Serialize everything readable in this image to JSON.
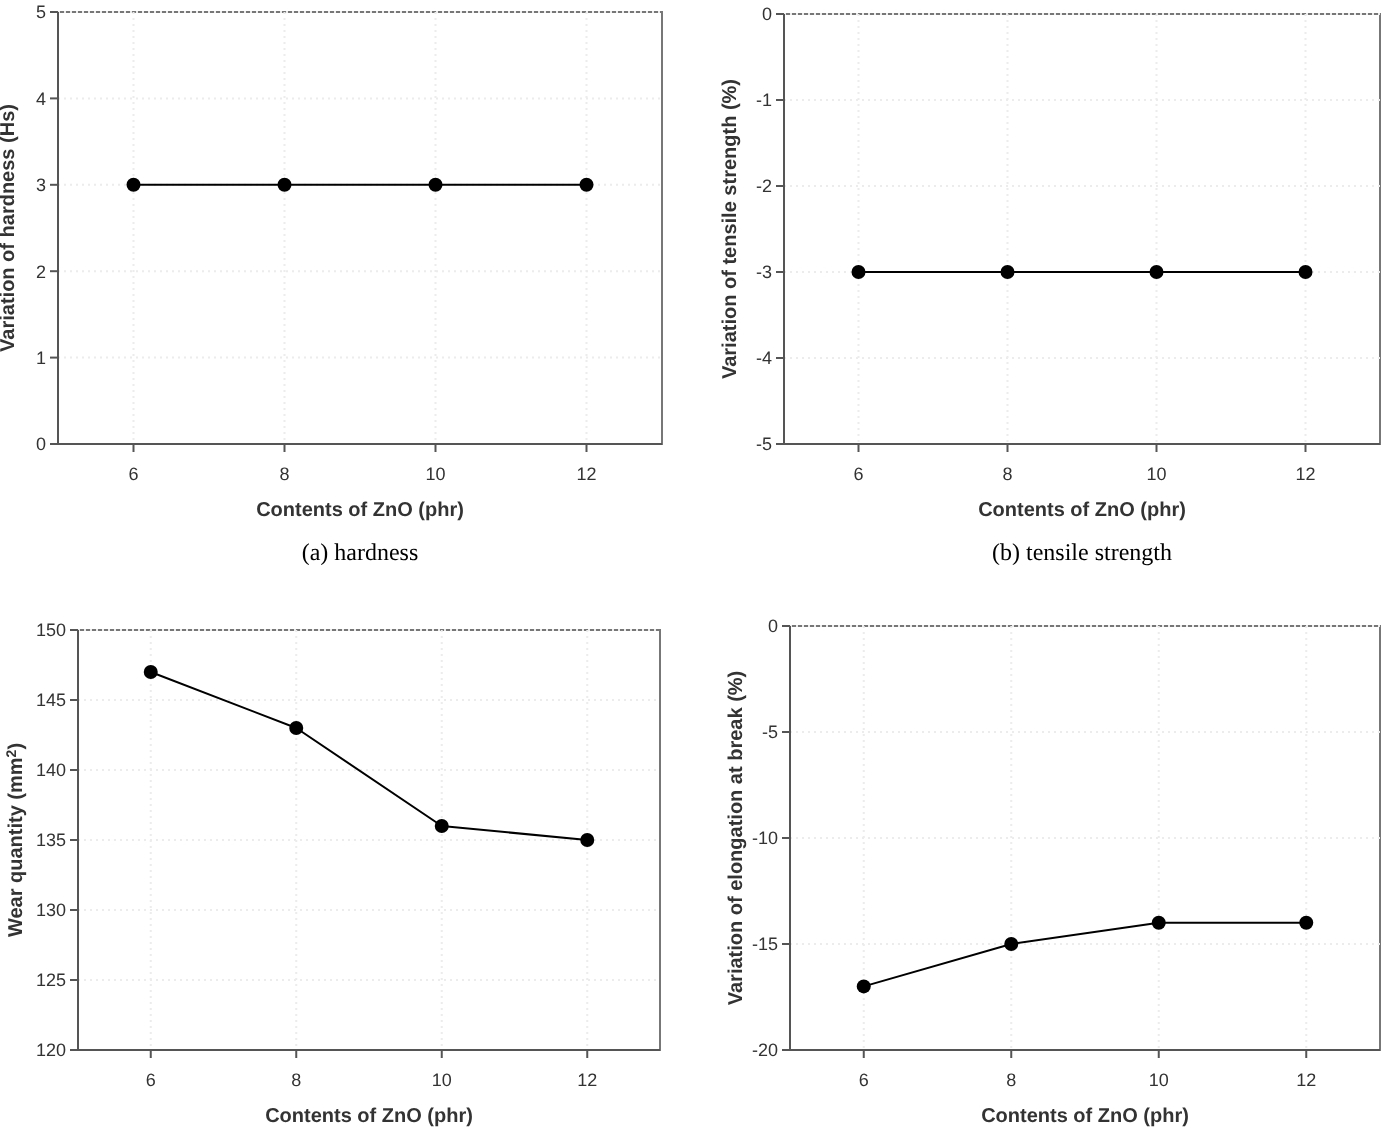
{
  "chart_data": [
    {
      "type": "line",
      "title": "(a)  hardness",
      "xlabel": "Contents of ZnO (phr)",
      "ylabel": "Variation of hardness (Hs)",
      "x": [
        6,
        8,
        10,
        12
      ],
      "series": [
        {
          "color": "#000000",
          "values": [
            3,
            3,
            3,
            3
          ]
        }
      ],
      "xlim": [
        5,
        13
      ],
      "xticks": [
        6,
        8,
        10,
        12
      ],
      "ylim": [
        0,
        5
      ],
      "yticks": [
        0,
        1,
        2,
        3,
        4,
        5
      ],
      "grid": true,
      "marker": "circle",
      "line_style": "solid"
    },
    {
      "type": "line",
      "title": "(b)  tensile  strength",
      "xlabel": "Contents of ZnO (phr)",
      "ylabel": "Variation of tensile strength (%)",
      "x": [
        6,
        8,
        10,
        12
      ],
      "series": [
        {
          "color": "#000000",
          "values": [
            -3,
            -3,
            -3,
            -3
          ]
        }
      ],
      "xlim": [
        5,
        13
      ],
      "xticks": [
        6,
        8,
        10,
        12
      ],
      "ylim": [
        -5,
        0
      ],
      "yticks": [
        -5,
        -4,
        -3,
        -2,
        -1,
        0
      ],
      "grid": true,
      "marker": "circle",
      "line_style": "solid"
    },
    {
      "type": "line",
      "xlabel": "Contents of ZnO (phr)",
      "ylabel": "Wear quantity (mm$^{2}$)",
      "x": [
        6,
        8,
        10,
        12
      ],
      "series": [
        {
          "color": "#000000",
          "values": [
            147,
            143,
            136,
            135
          ]
        }
      ],
      "xlim": [
        5,
        13
      ],
      "xticks": [
        6,
        8,
        10,
        12
      ],
      "ylim": [
        120,
        150
      ],
      "yticks": [
        120,
        125,
        130,
        135,
        140,
        145,
        150
      ],
      "grid": true,
      "marker": "circle",
      "line_style": "solid"
    },
    {
      "type": "line",
      "xlabel": "Contents of ZnO (phr)",
      "ylabel": "Variation of elongation at break (%)",
      "x": [
        6,
        8,
        10,
        12
      ],
      "series": [
        {
          "color": "#000000",
          "values": [
            -17,
            -15,
            -14,
            -14
          ]
        }
      ],
      "xlim": [
        5,
        13
      ],
      "xticks": [
        6,
        8,
        10,
        12
      ],
      "ylim": [
        -20,
        0
      ],
      "yticks": [
        -20,
        -15,
        -10,
        -5,
        0
      ],
      "grid": true,
      "marker": "circle",
      "line_style": "solid"
    }
  ]
}
